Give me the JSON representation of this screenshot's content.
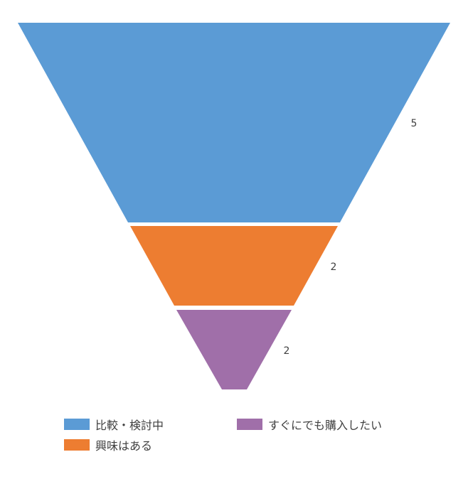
{
  "chart_data": {
    "type": "funnel",
    "categories": [
      "比較・検討中",
      "興味はある",
      "すぐにでも購入したい"
    ],
    "values": [
      5,
      2,
      2
    ],
    "colors": [
      "#5b9bd5",
      "#ed7d31",
      "#a06fa9"
    ],
    "legend": {
      "position": "bottom",
      "items": [
        {
          "label": "比較・検討中",
          "color": "#5b9bd5"
        },
        {
          "label": "すぐにでも購入したい",
          "color": "#a06fa9"
        },
        {
          "label": "興味はある",
          "color": "#ed7d31"
        }
      ]
    }
  }
}
